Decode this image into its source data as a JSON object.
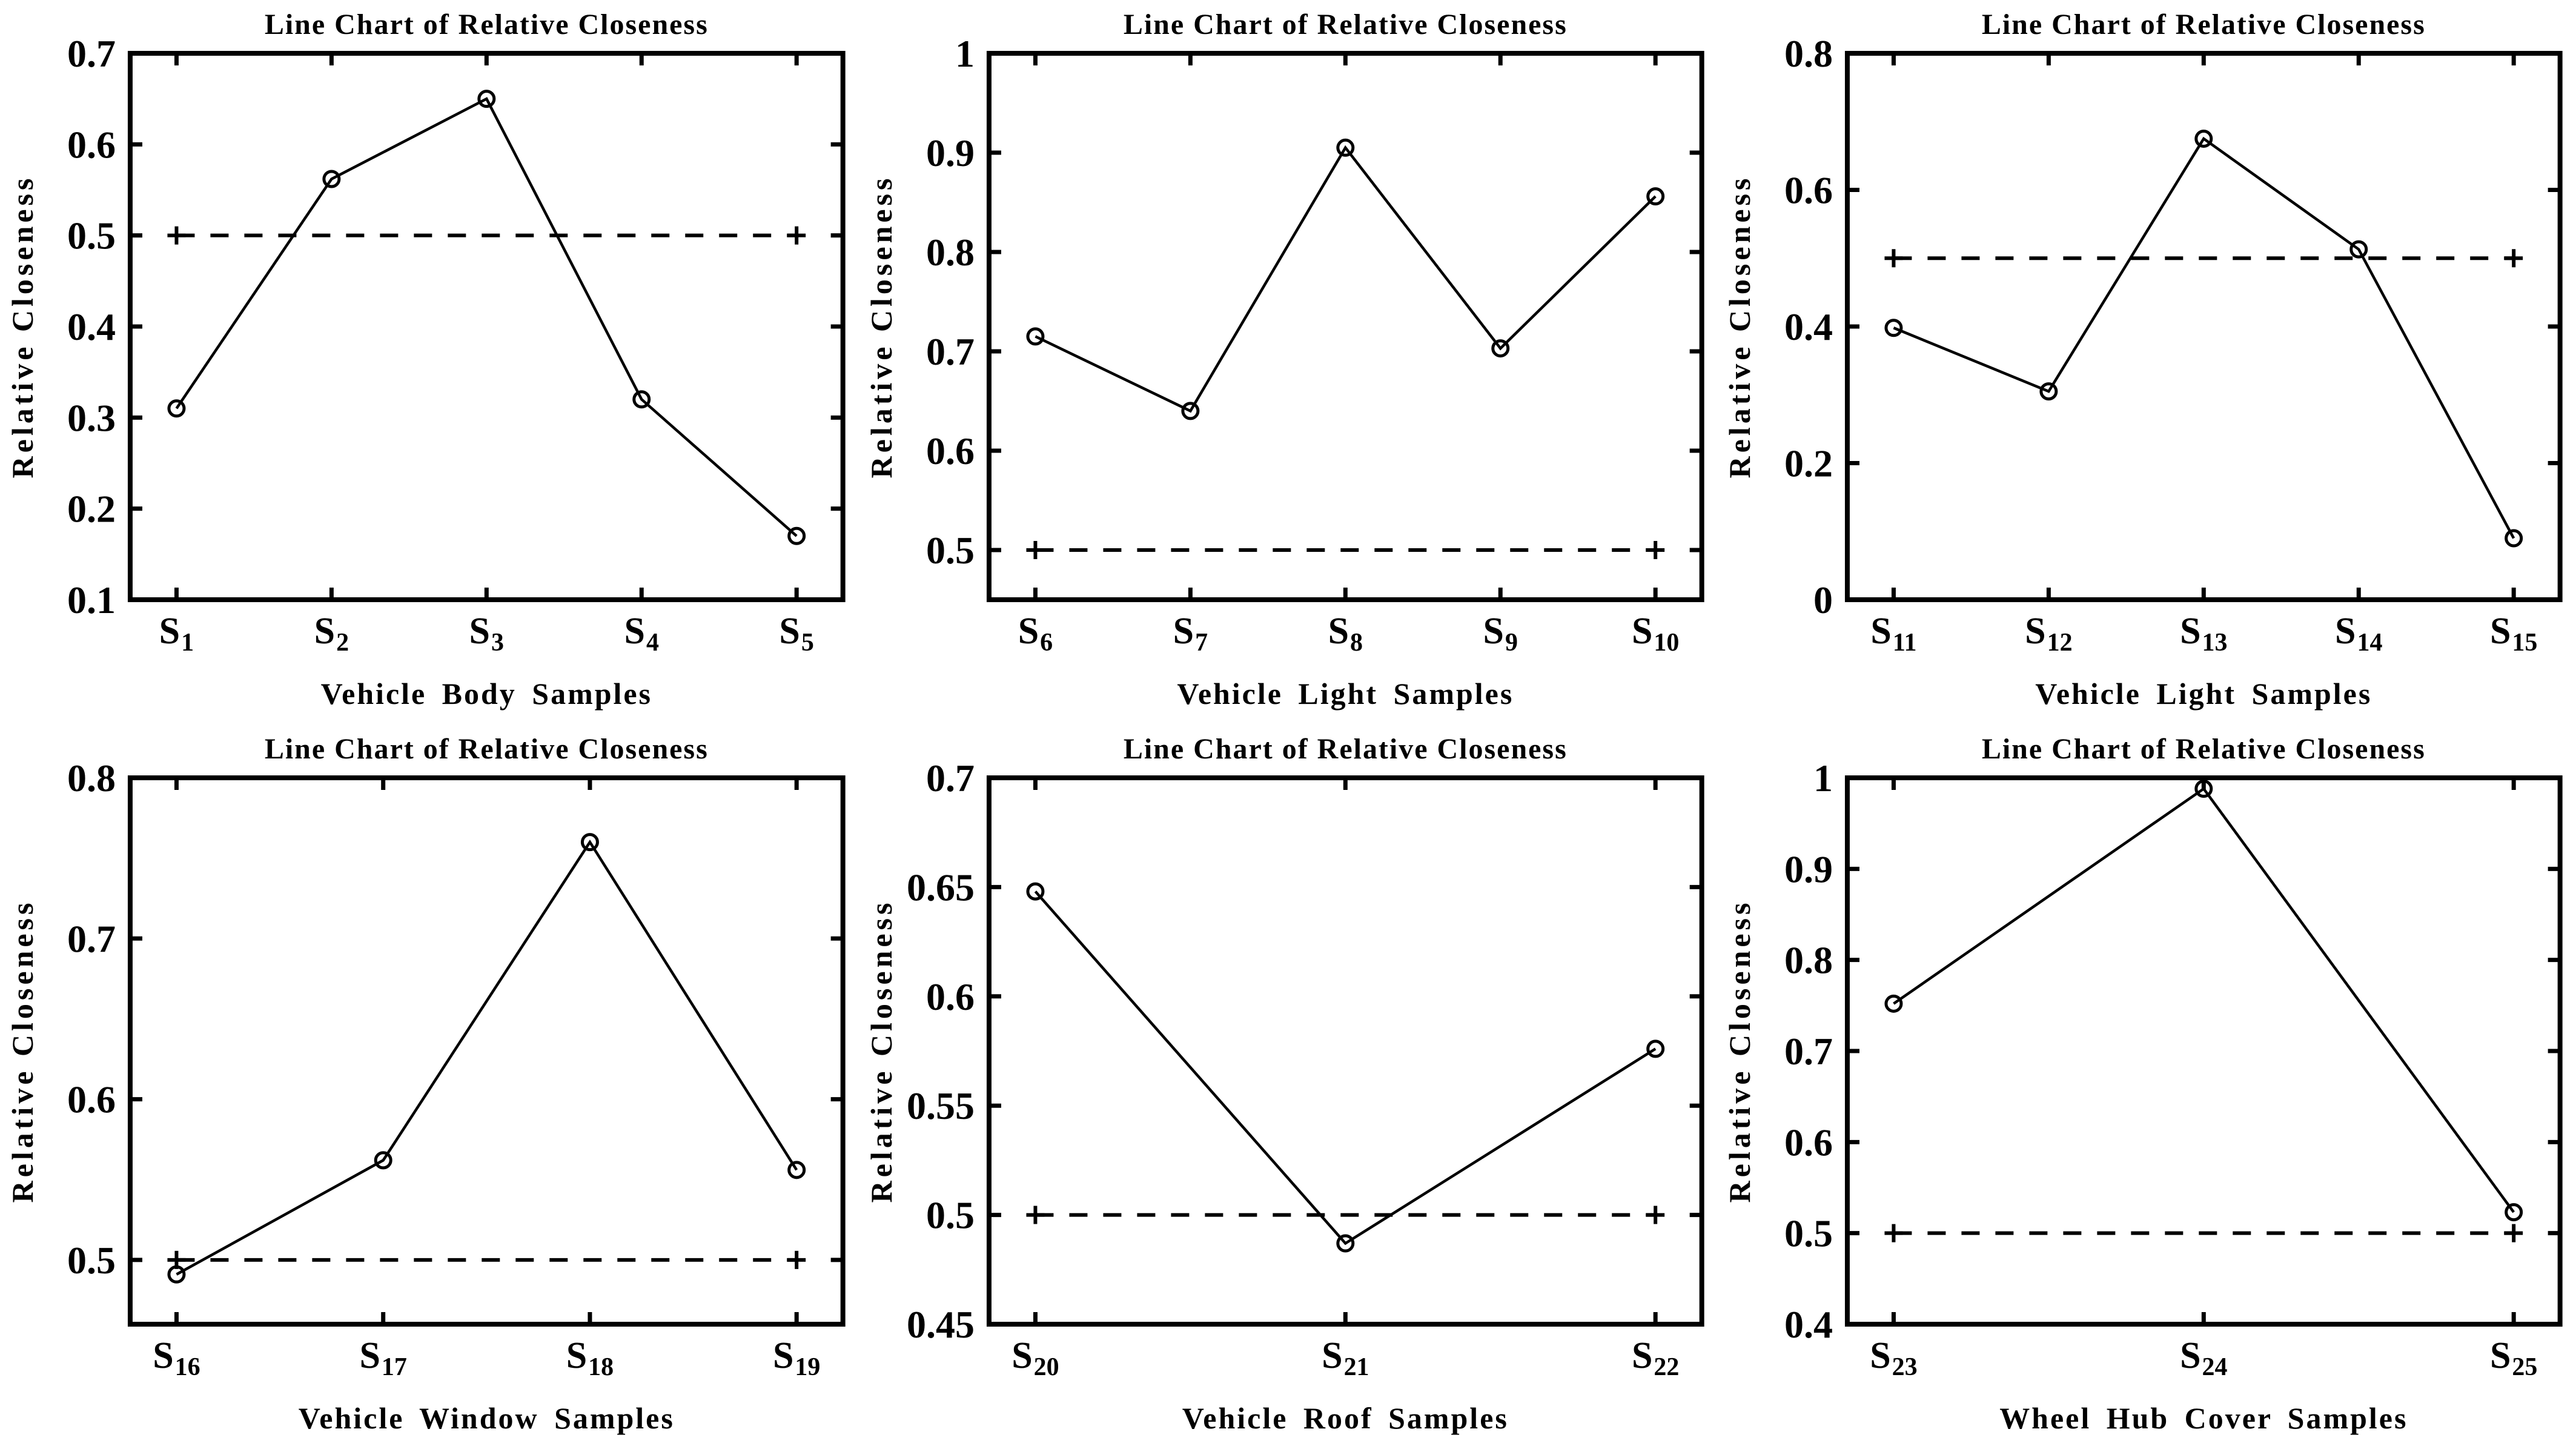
{
  "figure": {
    "rows": 2,
    "columns": 3,
    "background": "#ffffff",
    "ink_color": "#000000"
  },
  "chart_data": [
    {
      "type": "line",
      "title": "Line Chart of Relative Closeness",
      "xlabel": "Vehicle Body Samples",
      "ylabel": "Relative Closeness",
      "categories": [
        {
          "base": "S",
          "sub": "1"
        },
        {
          "base": "S",
          "sub": "2"
        },
        {
          "base": "S",
          "sub": "3"
        },
        {
          "base": "S",
          "sub": "4"
        },
        {
          "base": "S",
          "sub": "5"
        }
      ],
      "values": [
        0.31,
        0.562,
        0.65,
        0.32,
        0.17
      ],
      "ylim": [
        0.1,
        0.7
      ],
      "yticks": [
        {
          "value": 0.1,
          "label": "0.1"
        },
        {
          "value": 0.2,
          "label": "0.2"
        },
        {
          "value": 0.3,
          "label": "0.3"
        },
        {
          "value": 0.4,
          "label": "0.4"
        },
        {
          "value": 0.5,
          "label": "0.5"
        },
        {
          "value": 0.6,
          "label": "0.6"
        },
        {
          "value": 0.7,
          "label": "0.7"
        }
      ],
      "threshold": {
        "value": 0.5,
        "line_style": "dashed",
        "endpoint_marker": "plus"
      },
      "marker": "open-circle",
      "line_color": "#000000",
      "grid": false,
      "legend": null
    },
    {
      "type": "line",
      "title": "Line Chart of Relative Closeness",
      "xlabel": "Vehicle Light Samples",
      "ylabel": "Relative Closeness",
      "categories": [
        {
          "base": "S",
          "sub": "6"
        },
        {
          "base": "S",
          "sub": "7"
        },
        {
          "base": "S",
          "sub": "8"
        },
        {
          "base": "S",
          "sub": "9"
        },
        {
          "base": "S",
          "sub": "10"
        }
      ],
      "values": [
        0.715,
        0.64,
        0.905,
        0.703,
        0.856
      ],
      "ylim": [
        0.45,
        1.0
      ],
      "yticks": [
        {
          "value": 0.5,
          "label": "0.5"
        },
        {
          "value": 0.6,
          "label": "0.6"
        },
        {
          "value": 0.7,
          "label": "0.7"
        },
        {
          "value": 0.8,
          "label": "0.8"
        },
        {
          "value": 0.9,
          "label": "0.9"
        },
        {
          "value": 1.0,
          "label": "1"
        }
      ],
      "threshold": {
        "value": 0.5,
        "line_style": "dashed",
        "endpoint_marker": "plus"
      },
      "marker": "open-circle",
      "line_color": "#000000",
      "grid": false,
      "legend": null
    },
    {
      "type": "line",
      "title": "Line Chart of Relative Closeness",
      "xlabel": "Vehicle Light Samples",
      "ylabel": "Relative Closeness",
      "categories": [
        {
          "base": "S",
          "sub": "11"
        },
        {
          "base": "S",
          "sub": "12"
        },
        {
          "base": "S",
          "sub": "13"
        },
        {
          "base": "S",
          "sub": "14"
        },
        {
          "base": "S",
          "sub": "15"
        }
      ],
      "values": [
        0.398,
        0.305,
        0.675,
        0.513,
        0.09
      ],
      "ylim": [
        0.0,
        0.8
      ],
      "yticks": [
        {
          "value": 0.0,
          "label": "0"
        },
        {
          "value": 0.2,
          "label": "0.2"
        },
        {
          "value": 0.4,
          "label": "0.4"
        },
        {
          "value": 0.6,
          "label": "0.6"
        },
        {
          "value": 0.8,
          "label": "0.8"
        }
      ],
      "threshold": {
        "value": 0.5,
        "line_style": "dashed",
        "endpoint_marker": "plus"
      },
      "marker": "open-circle",
      "line_color": "#000000",
      "grid": false,
      "legend": null
    },
    {
      "type": "line",
      "title": "Line Chart of Relative Closeness",
      "xlabel": "Vehicle Window Samples",
      "ylabel": "Relative Closeness",
      "categories": [
        {
          "base": "S",
          "sub": "16"
        },
        {
          "base": "S",
          "sub": "17"
        },
        {
          "base": "S",
          "sub": "18"
        },
        {
          "base": "S",
          "sub": "19"
        }
      ],
      "values": [
        0.491,
        0.562,
        0.76,
        0.556
      ],
      "ylim": [
        0.46,
        0.8
      ],
      "yticks": [
        {
          "value": 0.5,
          "label": "0.5"
        },
        {
          "value": 0.6,
          "label": "0.6"
        },
        {
          "value": 0.7,
          "label": "0.7"
        },
        {
          "value": 0.8,
          "label": "0.8"
        }
      ],
      "threshold": {
        "value": 0.5,
        "line_style": "dashed",
        "endpoint_marker": "plus"
      },
      "marker": "open-circle",
      "line_color": "#000000",
      "grid": false,
      "legend": null
    },
    {
      "type": "line",
      "title": "Line Chart of Relative Closeness",
      "xlabel": "Vehicle Roof Samples",
      "ylabel": "Relative Closeness",
      "categories": [
        {
          "base": "S",
          "sub": "20"
        },
        {
          "base": "S",
          "sub": "21"
        },
        {
          "base": "S",
          "sub": "22"
        }
      ],
      "values": [
        0.648,
        0.487,
        0.576
      ],
      "ylim": [
        0.45,
        0.7
      ],
      "yticks": [
        {
          "value": 0.45,
          "label": "0.45"
        },
        {
          "value": 0.5,
          "label": "0.5"
        },
        {
          "value": 0.55,
          "label": "0.55"
        },
        {
          "value": 0.6,
          "label": "0.6"
        },
        {
          "value": 0.65,
          "label": "0.65"
        },
        {
          "value": 0.7,
          "label": "0.7"
        }
      ],
      "threshold": {
        "value": 0.5,
        "line_style": "dashed",
        "endpoint_marker": "plus"
      },
      "marker": "open-circle",
      "line_color": "#000000",
      "grid": false,
      "legend": null
    },
    {
      "type": "line",
      "title": "Line Chart of Relative Closeness",
      "xlabel": "Wheel Hub Cover Samples",
      "ylabel": "Relative Closeness",
      "categories": [
        {
          "base": "S",
          "sub": "23"
        },
        {
          "base": "S",
          "sub": "24"
        },
        {
          "base": "S",
          "sub": "25"
        }
      ],
      "values": [
        0.752,
        0.988,
        0.523
      ],
      "ylim": [
        0.4,
        1.0
      ],
      "yticks": [
        {
          "value": 0.4,
          "label": "0.4"
        },
        {
          "value": 0.5,
          "label": "0.5"
        },
        {
          "value": 0.6,
          "label": "0.6"
        },
        {
          "value": 0.7,
          "label": "0.7"
        },
        {
          "value": 0.8,
          "label": "0.8"
        },
        {
          "value": 0.9,
          "label": "0.9"
        },
        {
          "value": 1.0,
          "label": "1"
        }
      ],
      "threshold": {
        "value": 0.5,
        "line_style": "dashed",
        "endpoint_marker": "plus"
      },
      "marker": "open-circle",
      "line_color": "#000000",
      "grid": false,
      "legend": null
    }
  ]
}
